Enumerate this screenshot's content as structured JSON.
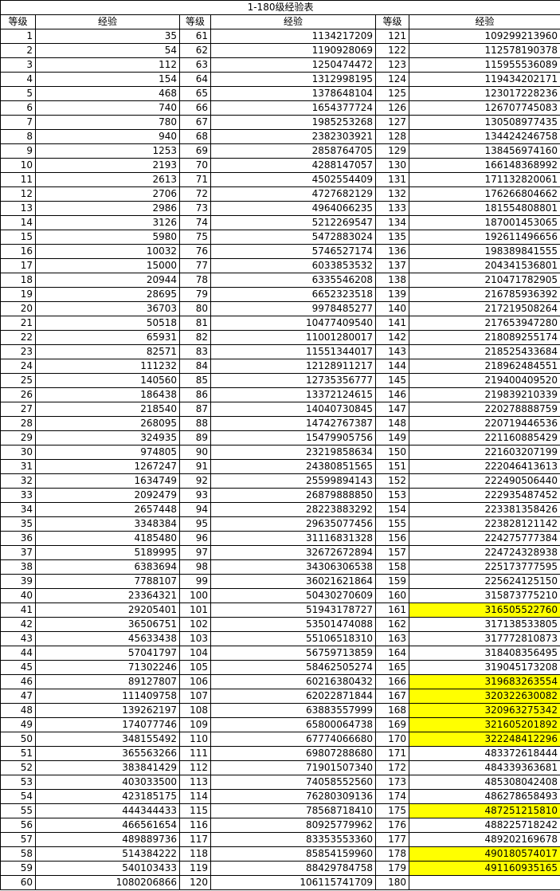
{
  "table": {
    "title": "1-180级经验表",
    "headers": [
      "等级",
      "经验",
      "等级",
      "经验",
      "等级",
      "经验"
    ],
    "rows": [
      [
        1,
        35,
        61,
        1134217209,
        121,
        109299213960
      ],
      [
        2,
        54,
        62,
        1190928069,
        122,
        112578190378
      ],
      [
        3,
        112,
        63,
        1250474472,
        123,
        115955536089
      ],
      [
        4,
        154,
        64,
        1312998195,
        124,
        119434202171
      ],
      [
        5,
        468,
        65,
        1378648104,
        125,
        123017228236
      ],
      [
        6,
        740,
        66,
        1654377724,
        126,
        126707745083
      ],
      [
        7,
        780,
        67,
        1985253268,
        127,
        130508977435
      ],
      [
        8,
        940,
        68,
        2382303921,
        128,
        134424246758
      ],
      [
        9,
        1253,
        69,
        2858764705,
        129,
        138456974160
      ],
      [
        10,
        2193,
        70,
        4288147057,
        130,
        166148368992
      ],
      [
        11,
        2613,
        71,
        4502554409,
        131,
        171132820061
      ],
      [
        12,
        2706,
        72,
        4727682129,
        132,
        176266804662
      ],
      [
        13,
        2986,
        73,
        4964066235,
        133,
        181554808801
      ],
      [
        14,
        3126,
        74,
        5212269547,
        134,
        187001453065
      ],
      [
        15,
        5980,
        75,
        5472883024,
        135,
        192611496656
      ],
      [
        16,
        10032,
        76,
        5746527174,
        136,
        198389841555
      ],
      [
        17,
        15000,
        77,
        6033853532,
        137,
        204341536801
      ],
      [
        18,
        20944,
        78,
        6335546208,
        138,
        210471782905
      ],
      [
        19,
        28695,
        79,
        6652323518,
        139,
        216785936392
      ],
      [
        20,
        36703,
        80,
        9978485277,
        140,
        217219508264
      ],
      [
        21,
        50518,
        81,
        10477409540,
        141,
        217653947280
      ],
      [
        22,
        65931,
        82,
        11001280017,
        142,
        218089255174
      ],
      [
        23,
        82571,
        83,
        11551344017,
        143,
        218525433684
      ],
      [
        24,
        111232,
        84,
        12128911217,
        144,
        218962484551
      ],
      [
        25,
        140560,
        85,
        12735356777,
        145,
        219400409520
      ],
      [
        26,
        186438,
        86,
        13372124615,
        146,
        219839210339
      ],
      [
        27,
        218540,
        87,
        14040730845,
        147,
        220278888759
      ],
      [
        28,
        268095,
        88,
        14742767387,
        148,
        220719446536
      ],
      [
        29,
        324935,
        89,
        15479905756,
        149,
        221160885429
      ],
      [
        30,
        974805,
        90,
        23219858634,
        150,
        221603207199
      ],
      [
        31,
        1267247,
        91,
        24380851565,
        151,
        222046413613
      ],
      [
        32,
        1634749,
        92,
        25599894143,
        152,
        222490506440
      ],
      [
        33,
        2092479,
        93,
        26879888850,
        153,
        222935487452
      ],
      [
        34,
        2657448,
        94,
        28223883292,
        154,
        223381358426
      ],
      [
        35,
        3348384,
        95,
        29635077456,
        155,
        223828121142
      ],
      [
        36,
        4185480,
        96,
        31116831328,
        156,
        224275777384
      ],
      [
        37,
        5189995,
        97,
        32672672894,
        157,
        224724328938
      ],
      [
        38,
        6383694,
        98,
        34306306538,
        158,
        225173777595
      ],
      [
        39,
        7788107,
        99,
        36021621864,
        159,
        225624125150
      ],
      [
        40,
        23364321,
        100,
        50430270609,
        160,
        315873775210
      ],
      [
        41,
        29205401,
        101,
        51943178727,
        161,
        316505522760
      ],
      [
        42,
        36506751,
        102,
        53501474088,
        162,
        317138533805
      ],
      [
        43,
        45633438,
        103,
        55106518310,
        163,
        317772810873
      ],
      [
        44,
        57041797,
        104,
        56759713859,
        164,
        318408356495
      ],
      [
        45,
        71302246,
        105,
        58462505274,
        165,
        319045173208
      ],
      [
        46,
        89127807,
        106,
        60216380432,
        166,
        319683263554
      ],
      [
        47,
        111409758,
        107,
        62022871844,
        167,
        320322630082
      ],
      [
        48,
        139262197,
        108,
        63883557999,
        168,
        320963275342
      ],
      [
        49,
        174077746,
        109,
        65800064738,
        169,
        321605201892
      ],
      [
        50,
        348155492,
        110,
        67774066680,
        170,
        322248412296
      ],
      [
        51,
        365563266,
        111,
        69807288680,
        171,
        483372618444
      ],
      [
        52,
        383841429,
        112,
        71901507340,
        172,
        484339363681
      ],
      [
        53,
        403033500,
        113,
        74058552560,
        173,
        485308042408
      ],
      [
        54,
        423185175,
        114,
        76280309136,
        174,
        486278658493
      ],
      [
        55,
        444344433,
        115,
        78568718410,
        175,
        487251215810
      ],
      [
        56,
        466561654,
        116,
        80925779962,
        176,
        488225718242
      ],
      [
        57,
        489889736,
        117,
        83353553360,
        177,
        489202169678
      ],
      [
        58,
        514384222,
        118,
        85854159960,
        178,
        490180574017
      ],
      [
        59,
        540103433,
        119,
        88429784758,
        179,
        491160935165
      ],
      [
        60,
        1080206866,
        120,
        106115741709,
        180,
        null
      ]
    ],
    "highlight": {
      "color": "#ffff00",
      "rows": [
        40,
        45,
        46,
        47,
        48,
        49,
        54,
        57,
        58
      ]
    }
  }
}
